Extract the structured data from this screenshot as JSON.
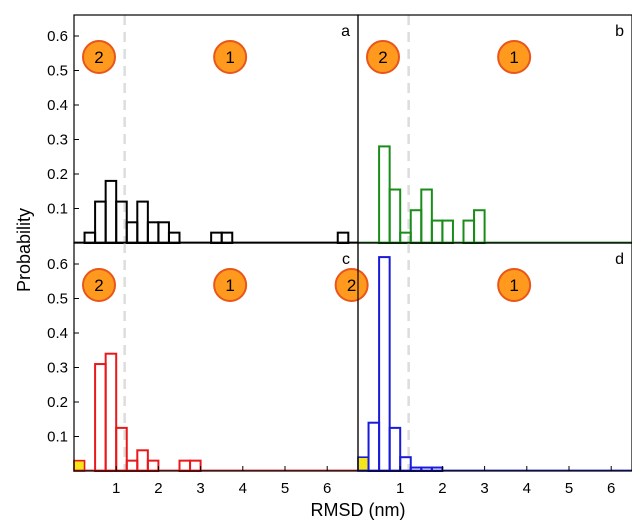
{
  "chart_data": {
    "type": "bar",
    "xlabel": "RMSD (nm)",
    "ylabel": "Probability",
    "xlim": [
      0,
      6.8
    ],
    "ylim": [
      0,
      0.65
    ],
    "x_ticks": [
      1,
      2,
      3,
      4,
      5,
      6
    ],
    "y_ticks": [
      0.1,
      0.2,
      0.3,
      0.4,
      0.5,
      0.6
    ],
    "threshold_line_x": 1.2,
    "bin_width": 0.25,
    "region_labels": {
      "left": "2",
      "right": "1"
    },
    "highlight_color": "#f5e61a",
    "panels": [
      {
        "letter": "a",
        "color": "#000000",
        "bins": [
          {
            "x0": 0.25,
            "y": 0.03
          },
          {
            "x0": 0.5,
            "y": 0.12
          },
          {
            "x0": 0.75,
            "y": 0.18
          },
          {
            "x0": 1.0,
            "y": 0.12
          },
          {
            "x0": 1.25,
            "y": 0.06
          },
          {
            "x0": 1.5,
            "y": 0.12
          },
          {
            "x0": 1.75,
            "y": 0.06
          },
          {
            "x0": 2.0,
            "y": 0.06
          },
          {
            "x0": 2.25,
            "y": 0.03
          },
          {
            "x0": 3.25,
            "y": 0.03
          },
          {
            "x0": 3.5,
            "y": 0.03
          },
          {
            "x0": 6.25,
            "y": 0.03
          }
        ]
      },
      {
        "letter": "b",
        "color": "#1a8c1a",
        "bins": [
          {
            "x0": 0.5,
            "y": 0.28
          },
          {
            "x0": 0.75,
            "y": 0.155
          },
          {
            "x0": 1.0,
            "y": 0.03
          },
          {
            "x0": 1.25,
            "y": 0.095
          },
          {
            "x0": 1.5,
            "y": 0.155
          },
          {
            "x0": 1.75,
            "y": 0.065
          },
          {
            "x0": 2.0,
            "y": 0.065
          },
          {
            "x0": 2.5,
            "y": 0.065
          },
          {
            "x0": 2.75,
            "y": 0.095
          }
        ]
      },
      {
        "letter": "c",
        "color": "#e8191a",
        "highlight_bins": [
          {
            "x0": 0.0,
            "y": 0.03
          }
        ],
        "bins": [
          {
            "x0": 0.5,
            "y": 0.31
          },
          {
            "x0": 0.75,
            "y": 0.34
          },
          {
            "x0": 1.0,
            "y": 0.125
          },
          {
            "x0": 1.25,
            "y": 0.03
          },
          {
            "x0": 1.5,
            "y": 0.06
          },
          {
            "x0": 1.75,
            "y": 0.03
          },
          {
            "x0": 2.5,
            "y": 0.03
          },
          {
            "x0": 2.75,
            "y": 0.03
          }
        ]
      },
      {
        "letter": "d",
        "color": "#1a1ad9",
        "highlight_bins": [
          {
            "x0": 0.0,
            "y": 0.04
          }
        ],
        "bins": [
          {
            "x0": 0.25,
            "y": 0.14
          },
          {
            "x0": 0.5,
            "y": 0.62
          },
          {
            "x0": 0.75,
            "y": 0.125
          },
          {
            "x0": 1.0,
            "y": 0.04
          },
          {
            "x0": 1.25,
            "y": 0.01
          },
          {
            "x0": 1.5,
            "y": 0.01
          },
          {
            "x0": 1.75,
            "y": 0.01
          }
        ]
      }
    ]
  }
}
